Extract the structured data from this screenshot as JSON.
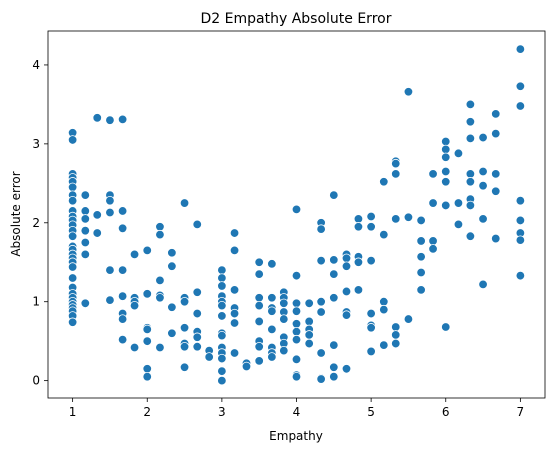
{
  "chart_data": {
    "type": "scatter",
    "title": "D2 Empathy Absolute Error",
    "xlabel": "Empathy",
    "ylabel": "Absolute error",
    "xlim": [
      0.67,
      7.33
    ],
    "ylim": [
      -0.22,
      4.43
    ],
    "xticks": [
      1,
      2,
      3,
      4,
      5,
      6,
      7
    ],
    "yticks": [
      0,
      1,
      2,
      3,
      4
    ],
    "grid": false,
    "legend": "none",
    "marker_color": "#1f77b4",
    "series": [
      {
        "points": [
          [
            1,
            3.14
          ],
          [
            1,
            3.05
          ],
          [
            1,
            2.62
          ],
          [
            1,
            2.57
          ],
          [
            1,
            2.52
          ],
          [
            1,
            2.45
          ],
          [
            1,
            2.35
          ],
          [
            1,
            2.28
          ],
          [
            1,
            2.15
          ],
          [
            1,
            2.08
          ],
          [
            1,
            2.03
          ],
          [
            1,
            1.97
          ],
          [
            1,
            1.9
          ],
          [
            1,
            1.83
          ],
          [
            1,
            1.7
          ],
          [
            1,
            1.66
          ],
          [
            1,
            1.6
          ],
          [
            1,
            1.55
          ],
          [
            1,
            1.5
          ],
          [
            1,
            1.44
          ],
          [
            1,
            1.3
          ],
          [
            1,
            1.18
          ],
          [
            1,
            1.1
          ],
          [
            1,
            1.05
          ],
          [
            1,
            1.0
          ],
          [
            1,
            0.96
          ],
          [
            1,
            0.92
          ],
          [
            1,
            0.88
          ],
          [
            1,
            0.82
          ],
          [
            1,
            0.74
          ],
          [
            1.17,
            2.35
          ],
          [
            1.17,
            2.15
          ],
          [
            1.17,
            2.05
          ],
          [
            1.17,
            1.9
          ],
          [
            1.17,
            1.75
          ],
          [
            1.17,
            1.6
          ],
          [
            1.17,
            0.98
          ],
          [
            1.33,
            3.33
          ],
          [
            1.33,
            2.1
          ],
          [
            1.33,
            1.87
          ],
          [
            1.5,
            3.3
          ],
          [
            1.5,
            2.35
          ],
          [
            1.5,
            2.28
          ],
          [
            1.5,
            2.13
          ],
          [
            1.5,
            1.4
          ],
          [
            1.5,
            1.02
          ],
          [
            1.67,
            3.31
          ],
          [
            1.67,
            2.15
          ],
          [
            1.67,
            1.93
          ],
          [
            1.67,
            1.4
          ],
          [
            1.67,
            1.07
          ],
          [
            1.67,
            0.85
          ],
          [
            1.67,
            0.78
          ],
          [
            1.67,
            0.52
          ],
          [
            1.83,
            1.6
          ],
          [
            1.83,
            1.05
          ],
          [
            1.83,
            1.0
          ],
          [
            1.83,
            0.95
          ],
          [
            1.83,
            0.42
          ],
          [
            2,
            1.65
          ],
          [
            2,
            1.1
          ],
          [
            2,
            0.67
          ],
          [
            2,
            0.65
          ],
          [
            2,
            0.5
          ],
          [
            2,
            0.15
          ],
          [
            2,
            0.05
          ],
          [
            2.17,
            1.95
          ],
          [
            2.17,
            1.85
          ],
          [
            2.17,
            1.27
          ],
          [
            2.17,
            1.08
          ],
          [
            2.17,
            1.05
          ],
          [
            2.17,
            0.42
          ],
          [
            2.33,
            1.62
          ],
          [
            2.33,
            1.45
          ],
          [
            2.33,
            0.93
          ],
          [
            2.33,
            0.6
          ],
          [
            2.5,
            2.25
          ],
          [
            2.5,
            1.05
          ],
          [
            2.5,
            1.0
          ],
          [
            2.5,
            0.67
          ],
          [
            2.5,
            0.47
          ],
          [
            2.5,
            0.43
          ],
          [
            2.5,
            0.17
          ],
          [
            2.67,
            1.98
          ],
          [
            2.67,
            1.12
          ],
          [
            2.67,
            0.85
          ],
          [
            2.67,
            0.62
          ],
          [
            2.67,
            0.55
          ],
          [
            2.67,
            0.43
          ],
          [
            2.83,
            0.38
          ],
          [
            2.83,
            0.3
          ],
          [
            3,
            1.4
          ],
          [
            3,
            1.3
          ],
          [
            3,
            1.2
          ],
          [
            3,
            1.07
          ],
          [
            3,
            1.0
          ],
          [
            3,
            0.95
          ],
          [
            3,
            0.82
          ],
          [
            3,
            0.6
          ],
          [
            3,
            0.57
          ],
          [
            3,
            0.42
          ],
          [
            3,
            0.35
          ],
          [
            3,
            0.28
          ],
          [
            3,
            0.12
          ],
          [
            3,
            0.0
          ],
          [
            3.17,
            1.87
          ],
          [
            3.17,
            1.65
          ],
          [
            3.17,
            1.15
          ],
          [
            3.17,
            0.92
          ],
          [
            3.17,
            0.85
          ],
          [
            3.17,
            0.73
          ],
          [
            3.17,
            0.35
          ],
          [
            3.33,
            0.22
          ],
          [
            3.33,
            0.18
          ],
          [
            3.5,
            1.5
          ],
          [
            3.5,
            1.35
          ],
          [
            3.5,
            1.05
          ],
          [
            3.5,
            0.95
          ],
          [
            3.5,
            0.75
          ],
          [
            3.5,
            0.5
          ],
          [
            3.5,
            0.43
          ],
          [
            3.5,
            0.25
          ],
          [
            3.67,
            1.48
          ],
          [
            3.67,
            1.05
          ],
          [
            3.67,
            0.92
          ],
          [
            3.67,
            0.88
          ],
          [
            3.67,
            0.65
          ],
          [
            3.67,
            0.42
          ],
          [
            3.67,
            0.35
          ],
          [
            3.67,
            0.3
          ],
          [
            3.83,
            1.12
          ],
          [
            3.83,
            1.05
          ],
          [
            3.83,
            0.98
          ],
          [
            3.83,
            0.87
          ],
          [
            3.83,
            0.78
          ],
          [
            3.83,
            0.55
          ],
          [
            3.83,
            0.47
          ],
          [
            3.83,
            0.38
          ],
          [
            4,
            2.17
          ],
          [
            4,
            1.33
          ],
          [
            4,
            0.98
          ],
          [
            4,
            0.88
          ],
          [
            4,
            0.72
          ],
          [
            4,
            0.62
          ],
          [
            4,
            0.52
          ],
          [
            4,
            0.27
          ],
          [
            4,
            0.07
          ],
          [
            4,
            0.05
          ],
          [
            4.17,
            0.98
          ],
          [
            4.17,
            0.75
          ],
          [
            4.17,
            0.65
          ],
          [
            4.17,
            0.58
          ],
          [
            4.17,
            0.47
          ],
          [
            4.33,
            2.0
          ],
          [
            4.33,
            1.92
          ],
          [
            4.33,
            1.52
          ],
          [
            4.33,
            1.0
          ],
          [
            4.33,
            0.87
          ],
          [
            4.33,
            0.35
          ],
          [
            4.33,
            0.03
          ],
          [
            4.33,
            0.02
          ],
          [
            4.5,
            2.35
          ],
          [
            4.5,
            1.53
          ],
          [
            4.5,
            1.35
          ],
          [
            4.5,
            1.05
          ],
          [
            4.5,
            0.45
          ],
          [
            4.5,
            0.17
          ],
          [
            4.5,
            0.05
          ],
          [
            4.67,
            1.6
          ],
          [
            4.67,
            1.55
          ],
          [
            4.67,
            1.45
          ],
          [
            4.67,
            1.13
          ],
          [
            4.67,
            0.87
          ],
          [
            4.67,
            0.83
          ],
          [
            4.67,
            0.15
          ],
          [
            4.83,
            2.05
          ],
          [
            4.83,
            1.95
          ],
          [
            4.83,
            1.57
          ],
          [
            4.83,
            1.5
          ],
          [
            4.83,
            1.15
          ],
          [
            5,
            2.08
          ],
          [
            5,
            1.95
          ],
          [
            5,
            1.52
          ],
          [
            5,
            0.85
          ],
          [
            5,
            0.7
          ],
          [
            5,
            0.67
          ],
          [
            5,
            0.37
          ],
          [
            5.17,
            2.52
          ],
          [
            5.17,
            1.85
          ],
          [
            5.17,
            1.0
          ],
          [
            5.17,
            0.9
          ],
          [
            5.17,
            0.45
          ],
          [
            5.33,
            2.78
          ],
          [
            5.33,
            2.75
          ],
          [
            5.33,
            2.62
          ],
          [
            5.33,
            2.05
          ],
          [
            5.33,
            0.68
          ],
          [
            5.33,
            0.58
          ],
          [
            5.33,
            0.47
          ],
          [
            5.5,
            3.66
          ],
          [
            5.5,
            2.07
          ],
          [
            5.5,
            0.78
          ],
          [
            5.67,
            2.03
          ],
          [
            5.67,
            1.77
          ],
          [
            5.67,
            1.57
          ],
          [
            5.67,
            1.37
          ],
          [
            5.67,
            1.15
          ],
          [
            5.83,
            2.62
          ],
          [
            5.83,
            2.25
          ],
          [
            5.83,
            1.77
          ],
          [
            5.83,
            1.67
          ],
          [
            6,
            3.03
          ],
          [
            6,
            2.93
          ],
          [
            6,
            2.83
          ],
          [
            6,
            2.65
          ],
          [
            6,
            2.52
          ],
          [
            6,
            2.22
          ],
          [
            6,
            0.68
          ],
          [
            6.17,
            2.88
          ],
          [
            6.17,
            2.25
          ],
          [
            6.17,
            1.98
          ],
          [
            6.33,
            3.5
          ],
          [
            6.33,
            3.28
          ],
          [
            6.33,
            3.07
          ],
          [
            6.33,
            2.62
          ],
          [
            6.33,
            2.52
          ],
          [
            6.33,
            2.3
          ],
          [
            6.33,
            2.22
          ],
          [
            6.33,
            1.83
          ],
          [
            6.5,
            3.08
          ],
          [
            6.5,
            2.65
          ],
          [
            6.5,
            2.47
          ],
          [
            6.5,
            2.05
          ],
          [
            6.5,
            1.22
          ],
          [
            6.67,
            3.38
          ],
          [
            6.67,
            3.13
          ],
          [
            6.67,
            2.62
          ],
          [
            6.67,
            2.4
          ],
          [
            6.67,
            1.8
          ],
          [
            7,
            4.2
          ],
          [
            7,
            3.73
          ],
          [
            7,
            3.48
          ],
          [
            7,
            2.28
          ],
          [
            7,
            2.03
          ],
          [
            7,
            1.87
          ],
          [
            7,
            1.78
          ],
          [
            7,
            1.33
          ]
        ]
      }
    ]
  }
}
